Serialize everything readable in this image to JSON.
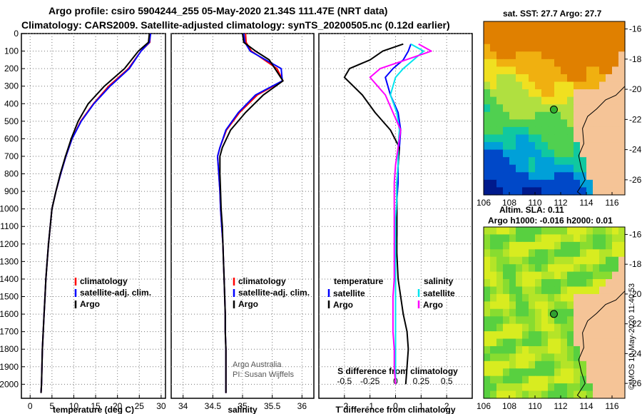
{
  "header": {
    "title_line1": "Argo profile: csiro 5904244_255 05-May-2020 21.34S 111.47E (NRT data)",
    "title_line2": "Climatology: CARS2009. Satellite-adjusted climatology: synTS_20200505.nc (0.12d earlier)"
  },
  "colors": {
    "climatology": "#ff0000",
    "satellite_adj": "#0000ff",
    "argo": "#000000",
    "satellite_s": "#00e5ee",
    "argo_s": "#ff00ff"
  },
  "chart_data": [
    {
      "type": "line",
      "panel": "temperature",
      "xlabel": "temperature (deg C)",
      "ylabel": "",
      "xlim": [
        -2,
        31
      ],
      "ylim": [
        2080,
        0
      ],
      "xticks": [
        0,
        5,
        10,
        15,
        20,
        25,
        30
      ],
      "yticks": [
        0,
        100,
        200,
        300,
        400,
        500,
        600,
        700,
        800,
        900,
        1000,
        1100,
        1200,
        1300,
        1400,
        1500,
        1600,
        1700,
        1800,
        1900,
        2000
      ],
      "legend": [
        "climatology",
        "satellite-adj. clim.",
        "Argo"
      ],
      "series": [
        {
          "name": "climatology",
          "color": "#ff0000",
          "x": [
            27.5,
            27.4,
            25.4,
            22.5,
            18.0,
            14.5,
            11.6,
            9.6,
            8.2,
            7.0,
            5.9,
            5.0,
            4.6,
            4.2,
            3.9,
            3.6,
            3.4,
            3.2,
            3.0,
            2.8,
            2.7,
            2.6,
            2.5
          ],
          "y": [
            0,
            50,
            100,
            200,
            300,
            400,
            500,
            600,
            700,
            800,
            900,
            1000,
            1100,
            1200,
            1300,
            1400,
            1500,
            1600,
            1700,
            1800,
            1900,
            2000,
            2050
          ]
        },
        {
          "name": "satellite-adj. clim.",
          "color": "#0000ff",
          "x": [
            27.6,
            27.3,
            25.4,
            22.7,
            18.3,
            14.6,
            11.7,
            9.6,
            8.2,
            7.0,
            5.9,
            5.0,
            4.6,
            4.2,
            3.9,
            3.6,
            3.4,
            3.2,
            3.0,
            2.8,
            2.7,
            2.6,
            2.5
          ],
          "y": [
            0,
            50,
            100,
            200,
            300,
            400,
            500,
            600,
            700,
            800,
            900,
            1000,
            1100,
            1200,
            1300,
            1400,
            1500,
            1600,
            1700,
            1800,
            1900,
            2000,
            2050
          ]
        },
        {
          "name": "Argo",
          "color": "#000000",
          "x": [
            27.3,
            27.1,
            24.8,
            21.6,
            17.0,
            13.3,
            11.0,
            9.4,
            8.1,
            6.9,
            5.9,
            5.0,
            4.6,
            4.2,
            3.9,
            3.6,
            3.4,
            3.2,
            3.0,
            2.8,
            2.7,
            2.6,
            2.5
          ],
          "y": [
            0,
            50,
            100,
            200,
            300,
            400,
            500,
            600,
            700,
            800,
            900,
            1000,
            1100,
            1200,
            1300,
            1400,
            1500,
            1600,
            1700,
            1800,
            1900,
            2000,
            2050
          ]
        }
      ]
    },
    {
      "type": "line",
      "panel": "salinity",
      "xlabel": "salinity",
      "ylabel": "",
      "xlim": [
        33.8,
        36.2
      ],
      "ylim": [
        2080,
        0
      ],
      "xticks": [
        34,
        34.5,
        35,
        35.5,
        36
      ],
      "legend": [
        "climatology",
        "satellite-adj. clim.",
        "Argo"
      ],
      "notes": [
        "Argo Australia",
        "PI: Susan Wijffels"
      ],
      "series": [
        {
          "name": "climatology",
          "color": "#ff0000",
          "x": [
            35.05,
            35.06,
            35.15,
            35.58,
            35.68,
            35.25,
            34.95,
            34.73,
            34.62,
            34.58,
            34.6,
            34.62,
            34.63,
            34.65,
            34.67,
            34.68,
            34.69,
            34.7,
            34.71,
            34.71,
            34.72,
            34.72,
            34.72
          ],
          "y": [
            0,
            50,
            100,
            200,
            270,
            350,
            450,
            550,
            650,
            700,
            800,
            900,
            1000,
            1100,
            1200,
            1300,
            1400,
            1500,
            1600,
            1700,
            1800,
            1900,
            2050
          ]
        },
        {
          "name": "satellite-adj. clim.",
          "color": "#0000ff",
          "x": [
            35.02,
            35.04,
            35.13,
            35.65,
            35.67,
            35.22,
            34.93,
            34.72,
            34.62,
            34.58,
            34.6,
            34.62,
            34.63,
            34.65,
            34.67,
            34.68,
            34.69,
            34.7,
            34.71,
            34.71,
            34.72,
            34.72,
            34.72
          ],
          "y": [
            0,
            50,
            100,
            200,
            270,
            350,
            450,
            550,
            650,
            700,
            800,
            900,
            1000,
            1100,
            1200,
            1300,
            1400,
            1500,
            1600,
            1700,
            1800,
            1900,
            2050
          ]
        },
        {
          "name": "Argo",
          "color": "#000000",
          "x": [
            35.0,
            35.02,
            35.22,
            35.45,
            35.68,
            35.35,
            35.05,
            34.8,
            34.66,
            34.62,
            34.62,
            34.63,
            34.64,
            34.66,
            34.67,
            34.68,
            34.69,
            34.7,
            34.71,
            34.71,
            34.72,
            34.72,
            34.72
          ],
          "y": [
            0,
            50,
            100,
            150,
            270,
            350,
            450,
            550,
            650,
            700,
            800,
            900,
            1000,
            1100,
            1200,
            1300,
            1400,
            1500,
            1600,
            1700,
            1800,
            1900,
            2050
          ]
        }
      ]
    },
    {
      "type": "line",
      "panel": "difference",
      "xlabel": "T difference from climatology",
      "xlabel2": "S difference from climatology",
      "xlim": [
        -3,
        3
      ],
      "ylim": [
        2080,
        0
      ],
      "xticks": [
        -2,
        -1,
        0,
        1,
        2
      ],
      "xticks2_labels": [
        "-0.5",
        "-0.25",
        "0",
        "0.25",
        "0.5"
      ],
      "xticks2_positions": [
        -2,
        -1,
        0,
        1,
        2
      ],
      "legend_temperature": [
        "temperature",
        "satellite",
        "Argo"
      ],
      "legend_salinity": [
        "salinity",
        "satellite",
        "Argo"
      ],
      "series": [
        {
          "name": "temperature satellite",
          "color": "#0000ff",
          "x": [
            0.6,
            0.5,
            0.3,
            -0.1,
            -0.4,
            -0.2,
            0.1,
            0.2,
            0.15,
            0.1,
            0.1,
            0.05,
            0.05,
            0.05,
            0.0,
            0.0,
            0.0,
            0.0,
            0.0,
            0.0,
            0.0,
            0.0
          ],
          "y": [
            60,
            100,
            150,
            200,
            250,
            350,
            450,
            550,
            650,
            750,
            850,
            950,
            1050,
            1150,
            1250,
            1400,
            1500,
            1600,
            1700,
            1800,
            1900,
            2000
          ]
        },
        {
          "name": "temperature Argo",
          "color": "#000000",
          "x": [
            0.3,
            -0.5,
            -1.0,
            -1.8,
            -2.0,
            -1.3,
            -0.8,
            -0.2,
            0.15,
            0.1,
            0.05,
            0.05,
            0.05,
            0.05,
            0.05,
            0.1,
            0.2,
            0.3,
            0.45,
            0.5,
            0.45,
            0.4
          ],
          "y": [
            60,
            100,
            150,
            200,
            250,
            350,
            450,
            550,
            650,
            750,
            850,
            950,
            1050,
            1150,
            1250,
            1400,
            1500,
            1600,
            1700,
            1800,
            1900,
            2000
          ]
        },
        {
          "name": "salinity satellite",
          "color": "#00e5ee",
          "x": [
            0.6,
            1.1,
            0.7,
            0.3,
            0.0,
            -0.2,
            0.05,
            0.15,
            0.1,
            0.1,
            0.05,
            0.05,
            0.0,
            0.0,
            0.0,
            0.0,
            0.0,
            0.0,
            0.0,
            0.0,
            0.0,
            0.0
          ],
          "y": [
            60,
            100,
            150,
            200,
            250,
            350,
            450,
            550,
            650,
            750,
            850,
            950,
            1050,
            1150,
            1250,
            1400,
            1500,
            1600,
            1700,
            1800,
            1900,
            2000
          ]
        },
        {
          "name": "salinity Argo",
          "color": "#ff00ff",
          "x": [
            0.9,
            1.4,
            0.4,
            -0.6,
            -1.0,
            -0.4,
            -0.1,
            0.2,
            0.1,
            0.0,
            -0.05,
            -0.05,
            -0.05,
            -0.05,
            -0.05,
            -0.05,
            -0.1,
            -0.1,
            -0.1,
            -0.05,
            -0.05,
            0.0
          ],
          "y": [
            60,
            100,
            150,
            200,
            250,
            350,
            450,
            550,
            650,
            750,
            850,
            950,
            1050,
            1150,
            1250,
            1400,
            1500,
            1600,
            1700,
            1800,
            1900,
            2000
          ]
        }
      ]
    },
    {
      "type": "heatmap",
      "panel": "map_sst",
      "title": "sat. SST: 27.7 Argo: 27.7",
      "xlim": [
        106,
        117
      ],
      "ylim": [
        -27,
        -15.5
      ],
      "xticks": [
        106,
        108,
        110,
        112,
        114,
        116
      ],
      "yticks": [
        -16,
        -18,
        -20,
        -22,
        -24,
        -26
      ],
      "argo_location": [
        111.47,
        -21.34
      ]
    },
    {
      "type": "heatmap",
      "panel": "map_sla",
      "title_line1": "Altim. SLA: 0.11",
      "title_line2": "Argo h1000: -0.016 h2000: 0.01",
      "xlim": [
        106,
        117
      ],
      "ylim": [
        -27,
        -15.5
      ],
      "xticks": [
        106,
        108,
        110,
        112,
        114,
        116
      ],
      "yticks": [
        -16,
        -18,
        -20,
        -22,
        -24,
        -26
      ],
      "argo_location": [
        111.47,
        -21.34
      ]
    }
  ],
  "footer": {
    "stamp": "©IMOS 10-May-2020 11:40:53"
  }
}
